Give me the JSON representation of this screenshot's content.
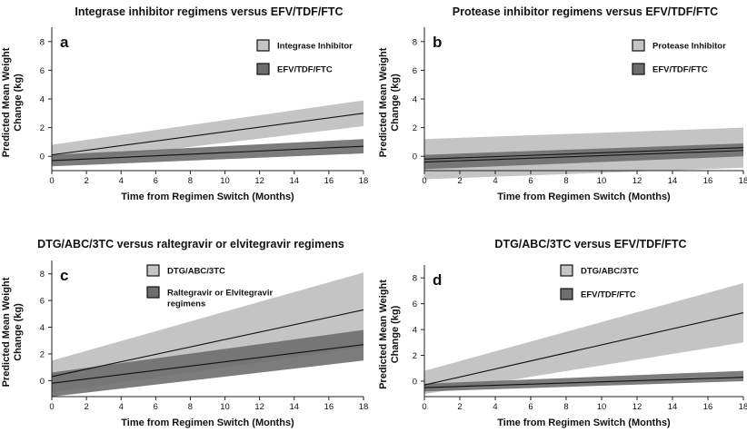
{
  "chart_data": [
    {
      "type": "line",
      "panel": "a",
      "title": "Integrase inhibitor regimens versus EFV/TDF/FTC",
      "xlabel": "Time from Regimen Switch (Months)",
      "ylabel": "Predicted Mean Weight Change (kg)",
      "xlim": [
        0,
        18
      ],
      "ylim": [
        -1,
        9
      ],
      "xticks": [
        "0",
        "2",
        "4",
        "6",
        "8",
        "10",
        "12",
        "14",
        "16",
        "18"
      ],
      "yticks": [
        "0",
        "2",
        "4",
        "6",
        "8"
      ],
      "legend_position": "top-right",
      "series": [
        {
          "name": "Integrase Inhibitor",
          "color": "#c4c4c4",
          "x": [
            0,
            18
          ],
          "y": [
            0.1,
            3.0
          ],
          "lower": [
            -0.5,
            2.1
          ],
          "upper": [
            0.8,
            3.9
          ]
        },
        {
          "name": "EFV/TDF/FTC",
          "color": "#6e6e6e",
          "x": [
            0,
            18
          ],
          "y": [
            -0.3,
            0.7
          ],
          "lower": [
            -0.7,
            0.2
          ],
          "upper": [
            0.1,
            1.2
          ]
        }
      ]
    },
    {
      "type": "line",
      "panel": "b",
      "title": "Protease inhibitor regimens versus EFV/TDF/FTC",
      "xlabel": "Time from Regimen Switch (Months)",
      "ylabel": "Predicted Mean Weight Change (kg)",
      "xlim": [
        0,
        18
      ],
      "ylim": [
        -1,
        9
      ],
      "xticks": [
        "0",
        "2",
        "4",
        "6",
        "8",
        "10",
        "12",
        "14",
        "16",
        "18"
      ],
      "yticks": [
        "0",
        "2",
        "4",
        "6",
        "8"
      ],
      "legend_position": "top-right",
      "series": [
        {
          "name": "Protease Inhibitor",
          "color": "#c4c4c4",
          "x": [
            0,
            18
          ],
          "y": [
            -0.2,
            0.6
          ],
          "lower": [
            -1.6,
            -0.8
          ],
          "upper": [
            1.2,
            2.0
          ]
        },
        {
          "name": "EFV/TDF/FTC",
          "color": "#6e6e6e",
          "x": [
            0,
            18
          ],
          "y": [
            -0.4,
            0.4
          ],
          "lower": [
            -0.9,
            0.0
          ],
          "upper": [
            0.1,
            0.9
          ]
        }
      ]
    },
    {
      "type": "line",
      "panel": "c",
      "title": "DTG/ABC/3TC versus raltegravir or elvitegravir regimens",
      "xlabel": "Time from Regimen Switch (Months)",
      "ylabel": "Predicted Mean Weight Change (kg)",
      "xlim": [
        0,
        18
      ],
      "ylim": [
        -1.2,
        9
      ],
      "xticks": [
        "0",
        "2",
        "4",
        "6",
        "8",
        "10",
        "12",
        "14",
        "16",
        "18"
      ],
      "yticks": [
        "0",
        "2",
        "4",
        "6",
        "8"
      ],
      "legend_position": "top-center",
      "series": [
        {
          "name": "DTG/ABC/3TC",
          "color": "#c4c4c4",
          "x": [
            0,
            18
          ],
          "y": [
            0.3,
            5.3
          ],
          "lower": [
            -0.9,
            2.5
          ],
          "upper": [
            1.5,
            8.1
          ]
        },
        {
          "name": "Raltegravir or Elvitegravir regimens",
          "color": "#6e6e6e",
          "x": [
            0,
            18
          ],
          "y": [
            -0.2,
            2.7
          ],
          "lower": [
            -1.2,
            1.5
          ],
          "upper": [
            0.6,
            3.8
          ]
        }
      ]
    },
    {
      "type": "line",
      "panel": "d",
      "title": "DTG/ABC/3TC versus EFV/TDF/FTC",
      "xlabel": "Time from Regimen Switch (Months)",
      "ylabel": "Predicted Mean Weight Change (kg)",
      "xlim": [
        0,
        18
      ],
      "ylim": [
        -1.2,
        9
      ],
      "xticks": [
        "0",
        "2",
        "4",
        "6",
        "8",
        "10",
        "12",
        "14",
        "16",
        "18"
      ],
      "yticks": [
        "0",
        "2",
        "4",
        "6",
        "8"
      ],
      "legend_position": "top-center",
      "series": [
        {
          "name": "DTG/ABC/3TC",
          "color": "#c4c4c4",
          "x": [
            0,
            18
          ],
          "y": [
            -0.3,
            5.3
          ],
          "lower": [
            -1.0,
            3.0
          ],
          "upper": [
            0.8,
            7.6
          ]
        },
        {
          "name": "EFV/TDF/FTC",
          "color": "#6e6e6e",
          "x": [
            0,
            18
          ],
          "y": [
            -0.5,
            0.3
          ],
          "lower": [
            -0.8,
            0.0
          ],
          "upper": [
            -0.2,
            0.8
          ]
        }
      ]
    }
  ]
}
